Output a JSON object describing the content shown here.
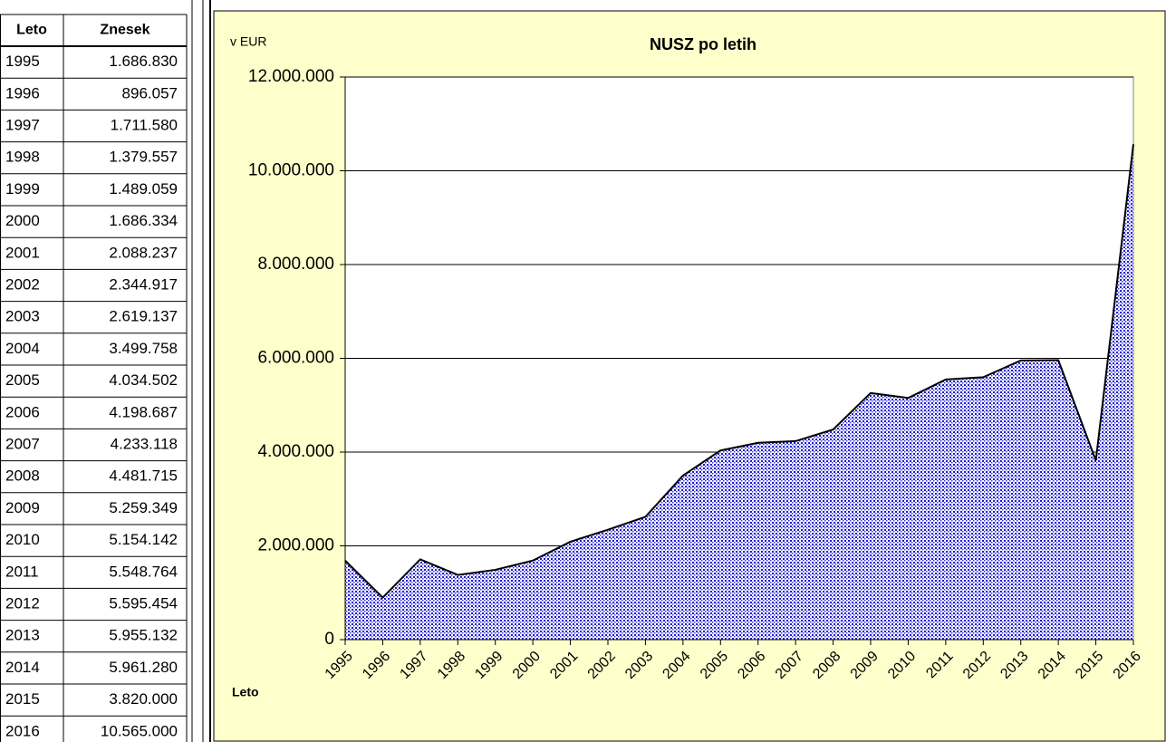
{
  "table": {
    "header": [
      "Leto",
      "Znesek"
    ],
    "rows": [
      [
        "1995",
        "1.686.830"
      ],
      [
        "1996",
        "896.057"
      ],
      [
        "1997",
        "1.711.580"
      ],
      [
        "1998",
        "1.379.557"
      ],
      [
        "1999",
        "1.489.059"
      ],
      [
        "2000",
        "1.686.334"
      ],
      [
        "2001",
        "2.088.237"
      ],
      [
        "2002",
        "2.344.917"
      ],
      [
        "2003",
        "2.619.137"
      ],
      [
        "2004",
        "3.499.758"
      ],
      [
        "2005",
        "4.034.502"
      ],
      [
        "2006",
        "4.198.687"
      ],
      [
        "2007",
        "4.233.118"
      ],
      [
        "2008",
        "4.481.715"
      ],
      [
        "2009",
        "5.259.349"
      ],
      [
        "2010",
        "5.154.142"
      ],
      [
        "2011",
        "5.548.764"
      ],
      [
        "2012",
        "5.595.454"
      ],
      [
        "2013",
        "5.955.132"
      ],
      [
        "2014",
        "5.961.280"
      ],
      [
        "2015",
        "3.820.000"
      ],
      [
        "2016",
        "10.565.000"
      ]
    ]
  },
  "chart_data": {
    "type": "area",
    "title": "NUSZ po letih",
    "y_label": "v EUR",
    "x_label": "Leto",
    "categories": [
      "1995",
      "1996",
      "1997",
      "1998",
      "1999",
      "2000",
      "2001",
      "2002",
      "2003",
      "2004",
      "2005",
      "2006",
      "2007",
      "2008",
      "2009",
      "2010",
      "2011",
      "2012",
      "2013",
      "2014",
      "2015",
      "2016"
    ],
    "values": [
      1686830,
      896057,
      1711580,
      1379557,
      1489059,
      1686334,
      2088237,
      2344917,
      2619137,
      3499758,
      4034502,
      4198687,
      4233118,
      4481715,
      5259349,
      5154142,
      5548764,
      5595454,
      5955132,
      5961280,
      3820000,
      10565000
    ],
    "ylim": [
      0,
      12000000
    ],
    "yticks": [
      0,
      {
        "value": 2000000,
        "label": "2.000.000"
      },
      {
        "value": 4000000,
        "label": "4.000.000"
      },
      {
        "value": 6000000,
        "label": "6.000.000"
      },
      {
        "value": 8000000,
        "label": "8.000.000"
      },
      {
        "value": 10000000,
        "label": "10.000.000"
      },
      {
        "value": 12000000,
        "label": "12.000.000"
      }
    ],
    "grid": true,
    "color": "#1a1acc"
  }
}
